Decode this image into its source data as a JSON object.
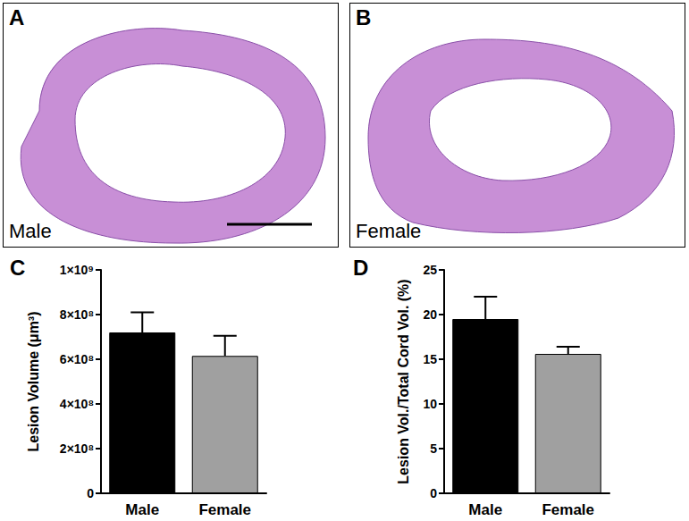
{
  "image_panels": [
    {
      "label": "A",
      "caption": "Male"
    },
    {
      "label": "B",
      "caption": "Female"
    }
  ],
  "chart_data": [
    {
      "type": "bar",
      "title": "C",
      "categories": [
        "Male",
        "Female"
      ],
      "values": [
        720000000,
        615000000
      ],
      "errors": [
        90000000,
        90000000
      ],
      "colors": [
        "#000000",
        "#a0a0a0"
      ],
      "y_label": "Lesion Volume (μm³)",
      "ylim": [
        0,
        1000000000
      ],
      "yticks": [
        0,
        {
          "value": 200000000,
          "label": "2×10⁸"
        },
        {
          "value": 400000000,
          "label": "4×10⁸"
        },
        {
          "value": 600000000,
          "label": "6×10⁸"
        },
        {
          "value": 800000000,
          "label": "8×10⁸"
        },
        {
          "value": 1000000000,
          "label": "1×10⁹"
        }
      ],
      "grid": false
    },
    {
      "type": "bar",
      "title": "D",
      "categories": [
        "Male",
        "Female"
      ],
      "values": [
        19.5,
        15.6
      ],
      "errors": [
        2.5,
        0.8
      ],
      "colors": [
        "#000000",
        "#a0a0a0"
      ],
      "y_label": "Lesion Vol./Total Cord Vol. (%)",
      "ylim": [
        0,
        25
      ],
      "yticks": [
        0,
        5,
        10,
        15,
        20,
        25
      ],
      "grid": false
    }
  ]
}
